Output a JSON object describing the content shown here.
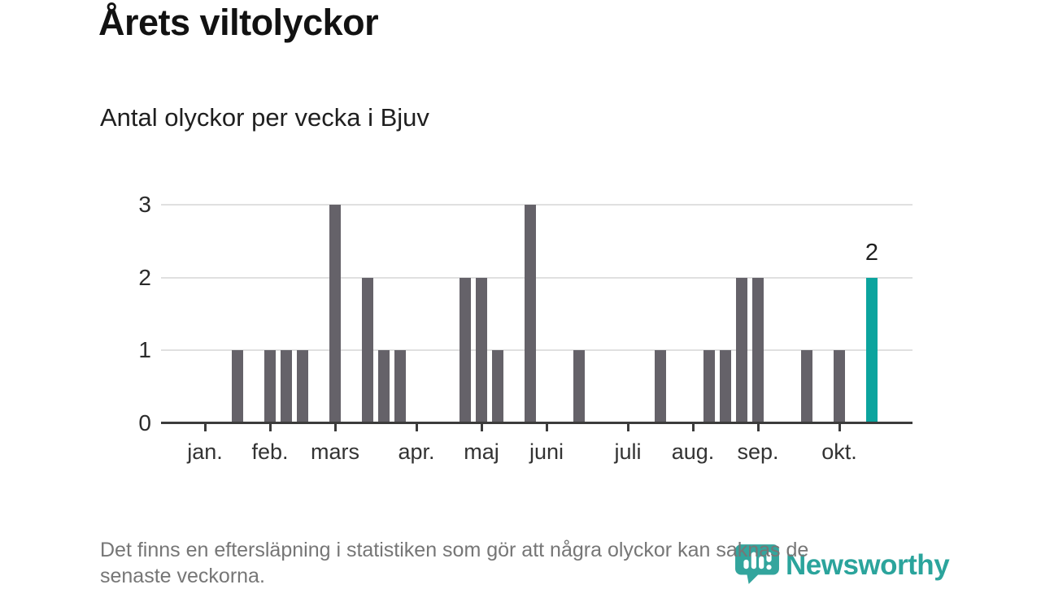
{
  "header": {
    "title": "Årets viltolyckor",
    "subtitle": "Antal olyckor per vecka i Bjuv"
  },
  "footer": {
    "note": "Det finns en eftersläpning i statistiken som gör att några olyckor kan saknas de senaste veckorna.",
    "line1": "Det finns en eftersläpning i statistiken som gör att några olyckor kan saknas de",
    "line2": "senaste veckorna."
  },
  "branding": {
    "logo_text": "Newsworthy",
    "logo_color": "#33a59d",
    "logo_text_color": "#2ba49c"
  },
  "chart_data": {
    "type": "bar",
    "title": "Årets viltolyckor",
    "subtitle": "Antal olyckor per vecka i Bjuv",
    "x_unit": "week of year (januari–oktober)",
    "ylabel": "",
    "ylim": [
      0,
      3
    ],
    "yticks": [
      0,
      1,
      2,
      3
    ],
    "grid": true,
    "bar_color": "#656269",
    "highlight_color": "#0ba49e",
    "weekly_values": [
      0,
      0,
      0,
      0,
      1,
      0,
      1,
      1,
      1,
      0,
      3,
      0,
      2,
      1,
      1,
      0,
      0,
      0,
      2,
      2,
      1,
      0,
      3,
      0,
      0,
      1,
      0,
      0,
      0,
      0,
      1,
      0,
      0,
      1,
      1,
      2,
      2,
      0,
      0,
      1,
      0,
      1,
      0,
      2
    ],
    "highlight_index": 43,
    "highlight_label": "2",
    "month_ticks": [
      {
        "label": "jan.",
        "week_index": 2
      },
      {
        "label": "feb.",
        "week_index": 6
      },
      {
        "label": "mars",
        "week_index": 10
      },
      {
        "label": "apr.",
        "week_index": 15
      },
      {
        "label": "maj",
        "week_index": 19
      },
      {
        "label": "juni",
        "week_index": 23
      },
      {
        "label": "juli",
        "week_index": 28
      },
      {
        "label": "aug.",
        "week_index": 32
      },
      {
        "label": "sep.",
        "week_index": 36
      },
      {
        "label": "okt.",
        "week_index": 41
      }
    ]
  }
}
